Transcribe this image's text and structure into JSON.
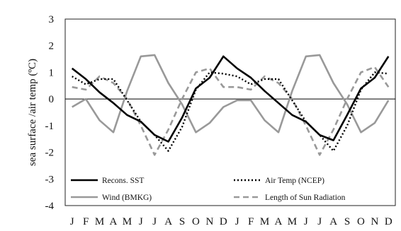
{
  "chart_data": {
    "type": "line",
    "ylabel": "sea surface /air temp (ºC)",
    "xlabel": "",
    "ylim": [
      -4,
      3
    ],
    "yticks": [
      3,
      2,
      1,
      0,
      -1,
      -2,
      -3,
      -4
    ],
    "categories": [
      "J",
      "F",
      "M",
      "A",
      "M",
      "J",
      "J",
      "A",
      "S",
      "O",
      "N",
      "D",
      "J",
      "F",
      "M",
      "A",
      "M",
      "J",
      "J",
      "A",
      "S",
      "O",
      "N",
      "D"
    ],
    "grid": false,
    "legend_position": "bottom-inside",
    "series": [
      {
        "name": "Recons. SST",
        "color": "#000000",
        "style": "solid",
        "values": [
          1.15,
          0.75,
          0.25,
          -0.15,
          -0.6,
          -0.85,
          -1.35,
          -1.6,
          -0.7,
          0.4,
          0.8,
          1.6,
          1.15,
          0.8,
          0.3,
          -0.15,
          -0.6,
          -0.85,
          -1.35,
          -1.55,
          -0.6,
          0.4,
          0.8,
          1.6
        ]
      },
      {
        "name": "Air Temp (NCEP)",
        "color": "#000000",
        "style": "dotted",
        "values": [
          0.85,
          0.55,
          0.75,
          0.75,
          -0.05,
          -0.85,
          -1.35,
          -1.95,
          -1.05,
          0.35,
          1.0,
          0.95,
          0.85,
          0.55,
          0.75,
          0.75,
          -0.05,
          -0.85,
          -1.35,
          -1.95,
          -1.0,
          0.35,
          1.0,
          0.95
        ]
      },
      {
        "name": "Wind (BMKG)",
        "color": "#999999",
        "style": "solid",
        "values": [
          -0.3,
          0.0,
          -0.8,
          -1.25,
          0.3,
          1.6,
          1.65,
          0.6,
          -0.2,
          -1.25,
          -0.9,
          -0.3,
          -0.05,
          -0.05,
          -0.8,
          -1.25,
          0.3,
          1.6,
          1.65,
          0.6,
          -0.2,
          -1.25,
          -0.9,
          -0.05
        ]
      },
      {
        "name": "Length of Sun Radiation",
        "color": "#999999",
        "style": "dashed",
        "values": [
          0.45,
          0.35,
          0.85,
          0.6,
          0.0,
          -1.0,
          -2.1,
          -1.15,
          0.0,
          1.0,
          1.15,
          0.45,
          0.45,
          0.35,
          0.85,
          0.6,
          0.0,
          -1.0,
          -2.1,
          -1.15,
          0.0,
          1.0,
          1.2,
          0.45
        ]
      }
    ]
  }
}
